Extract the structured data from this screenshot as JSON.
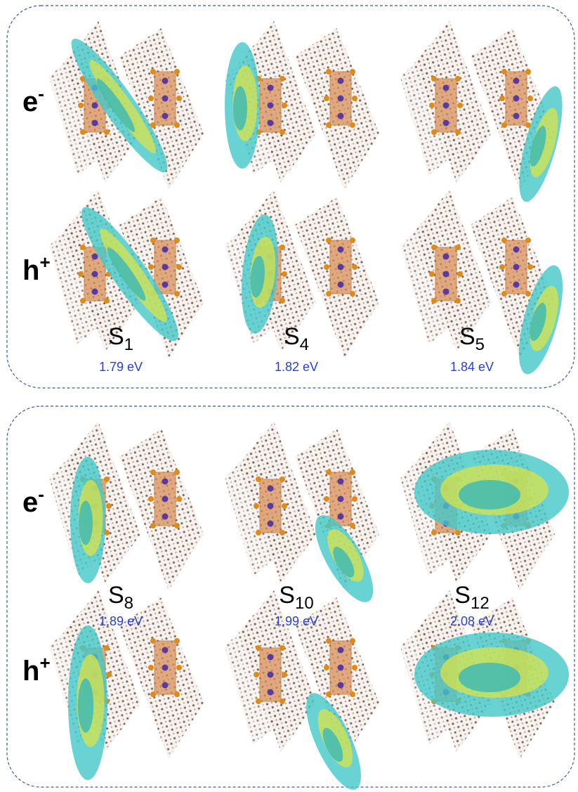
{
  "panels": [
    {
      "rows": [
        {
          "base": "e",
          "sup": "-"
        },
        {
          "base": "h",
          "sup": "+"
        }
      ],
      "states": [
        {
          "base": "S",
          "sub": "1",
          "energy": "1.79 eV"
        },
        {
          "base": "S",
          "sub": "4",
          "energy": "1.82 eV"
        },
        {
          "base": "S",
          "sub": "5",
          "energy": "1.84 eV"
        }
      ]
    },
    {
      "rows": [
        {
          "base": "e",
          "sup": "-"
        },
        {
          "base": "h",
          "sup": "+"
        }
      ],
      "states": [
        {
          "base": "S",
          "sub": "8",
          "energy": "1.89 eV"
        },
        {
          "base": "S",
          "sub": "10",
          "energy": "1.99 eV"
        },
        {
          "base": "S",
          "sub": "12",
          "energy": "2.08 eV"
        }
      ]
    }
  ]
}
